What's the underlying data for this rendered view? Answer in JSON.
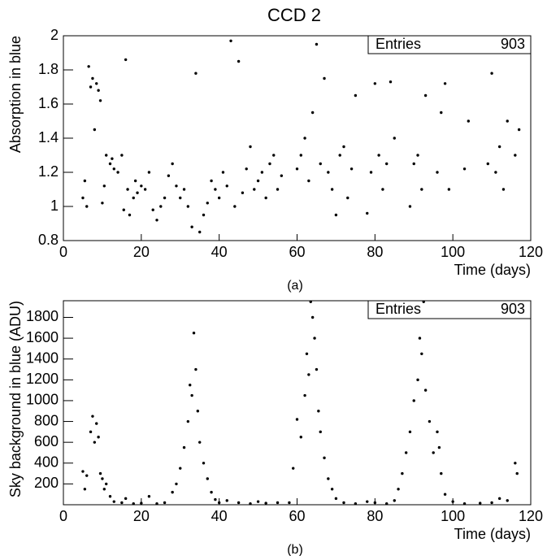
{
  "chart_data": [
    {
      "type": "scatter",
      "title": "CCD 2",
      "x_label": "Time (days)",
      "y_label": "Absorption in blue",
      "caption": "(a)",
      "stats": {
        "label": "Entries",
        "value": 903
      },
      "color": "#000000",
      "xlim": [
        0,
        120
      ],
      "ylim": [
        0.8,
        2
      ],
      "xticks": [
        0,
        20,
        40,
        60,
        80,
        100,
        120
      ],
      "yticks": [
        0.8,
        1,
        1.2,
        1.4,
        1.6,
        1.8,
        2
      ],
      "x": [
        5,
        5.5,
        6,
        6.5,
        7,
        7.5,
        8,
        8.5,
        9,
        9.5,
        10,
        10.5,
        11,
        12,
        12.5,
        13,
        14,
        15,
        15.5,
        16,
        16.5,
        17,
        18,
        18.5,
        19,
        20,
        21,
        22,
        23,
        24,
        25,
        26,
        27,
        28,
        29,
        30,
        31,
        32,
        33,
        34,
        35,
        36,
        37,
        38,
        39,
        40,
        41,
        42,
        43,
        44,
        45,
        46,
        47,
        48,
        49,
        50,
        51,
        52,
        53,
        54,
        55,
        56,
        60,
        61,
        62,
        63,
        64,
        65,
        66,
        67,
        68,
        69,
        70,
        71,
        72,
        73,
        74,
        75,
        78,
        79,
        80,
        81,
        82,
        83,
        84,
        85,
        89,
        90,
        91,
        92,
        93,
        96,
        97,
        98,
        99,
        103,
        104,
        109,
        110,
        111,
        112,
        113,
        114,
        116,
        117
      ],
      "values": [
        1.05,
        1.15,
        1.0,
        1.82,
        1.7,
        1.75,
        1.45,
        1.72,
        1.68,
        1.62,
        1.02,
        1.12,
        1.3,
        1.25,
        1.28,
        1.22,
        1.2,
        1.3,
        0.98,
        1.86,
        1.1,
        0.95,
        1.05,
        1.15,
        1.08,
        1.12,
        1.1,
        1.2,
        0.98,
        0.92,
        1.0,
        1.05,
        1.18,
        1.25,
        1.12,
        1.05,
        1.1,
        1.0,
        0.88,
        1.78,
        0.85,
        0.95,
        1.02,
        1.15,
        1.1,
        1.05,
        1.2,
        1.12,
        1.97,
        1.0,
        1.85,
        1.08,
        1.22,
        1.35,
        1.1,
        1.15,
        1.2,
        1.05,
        1.25,
        1.3,
        1.1,
        1.18,
        1.22,
        1.3,
        1.4,
        1.15,
        1.55,
        1.95,
        1.25,
        1.75,
        1.2,
        1.1,
        0.95,
        1.3,
        1.35,
        1.05,
        1.22,
        1.65,
        0.96,
        1.2,
        1.72,
        1.3,
        1.1,
        1.25,
        1.73,
        1.4,
        1.0,
        1.25,
        1.3,
        1.1,
        1.65,
        1.2,
        1.55,
        1.72,
        1.1,
        1.22,
        1.5,
        1.25,
        1.78,
        1.2,
        1.35,
        1.1,
        1.5,
        1.3,
        1.45
      ]
    },
    {
      "type": "scatter",
      "x_label": "Time (days)",
      "y_label": "Sky background in blue (ADU)",
      "caption": "(b)",
      "stats": {
        "label": "Entries",
        "value": 903
      },
      "color": "#000000",
      "xlim": [
        0,
        120
      ],
      "ylim": [
        0,
        1960
      ],
      "xticks": [
        0,
        20,
        40,
        60,
        80,
        100,
        120
      ],
      "yticks": [
        200,
        400,
        600,
        800,
        1000,
        1200,
        1400,
        1600,
        1800
      ],
      "x": [
        5,
        5.5,
        6,
        7,
        7.5,
        8,
        8.5,
        9,
        9.5,
        10,
        10.5,
        11,
        12,
        13,
        15,
        16,
        18,
        20,
        22,
        24,
        26,
        28,
        29,
        30,
        31,
        32,
        32.5,
        33,
        33.5,
        34,
        34.5,
        35,
        36,
        37,
        38,
        39,
        40,
        42,
        45,
        48,
        50,
        52,
        55,
        58,
        59,
        60,
        61,
        62,
        62.5,
        63,
        63.5,
        64,
        64.5,
        65,
        65.5,
        66,
        67,
        68,
        69,
        70,
        72,
        75,
        78,
        80,
        83,
        85,
        86,
        87,
        88,
        89,
        90,
        91,
        91.5,
        92,
        92.5,
        93,
        94,
        95,
        96,
        96.5,
        97,
        98,
        100,
        103,
        107,
        110,
        112,
        114,
        116,
        116.5
      ],
      "values": [
        320,
        150,
        280,
        700,
        850,
        600,
        780,
        650,
        300,
        250,
        150,
        200,
        80,
        30,
        20,
        60,
        10,
        15,
        80,
        10,
        20,
        120,
        200,
        350,
        550,
        800,
        1150,
        1050,
        1650,
        1300,
        900,
        600,
        400,
        250,
        120,
        50,
        20,
        40,
        20,
        10,
        30,
        15,
        20,
        20,
        350,
        820,
        650,
        1050,
        1450,
        1250,
        1950,
        1800,
        1600,
        1300,
        900,
        700,
        450,
        250,
        150,
        60,
        20,
        10,
        30,
        20,
        10,
        40,
        150,
        300,
        500,
        700,
        1000,
        1200,
        1600,
        1450,
        1950,
        1100,
        800,
        500,
        700,
        550,
        300,
        100,
        30,
        10,
        15,
        20,
        60,
        40,
        400,
        300
      ]
    }
  ]
}
